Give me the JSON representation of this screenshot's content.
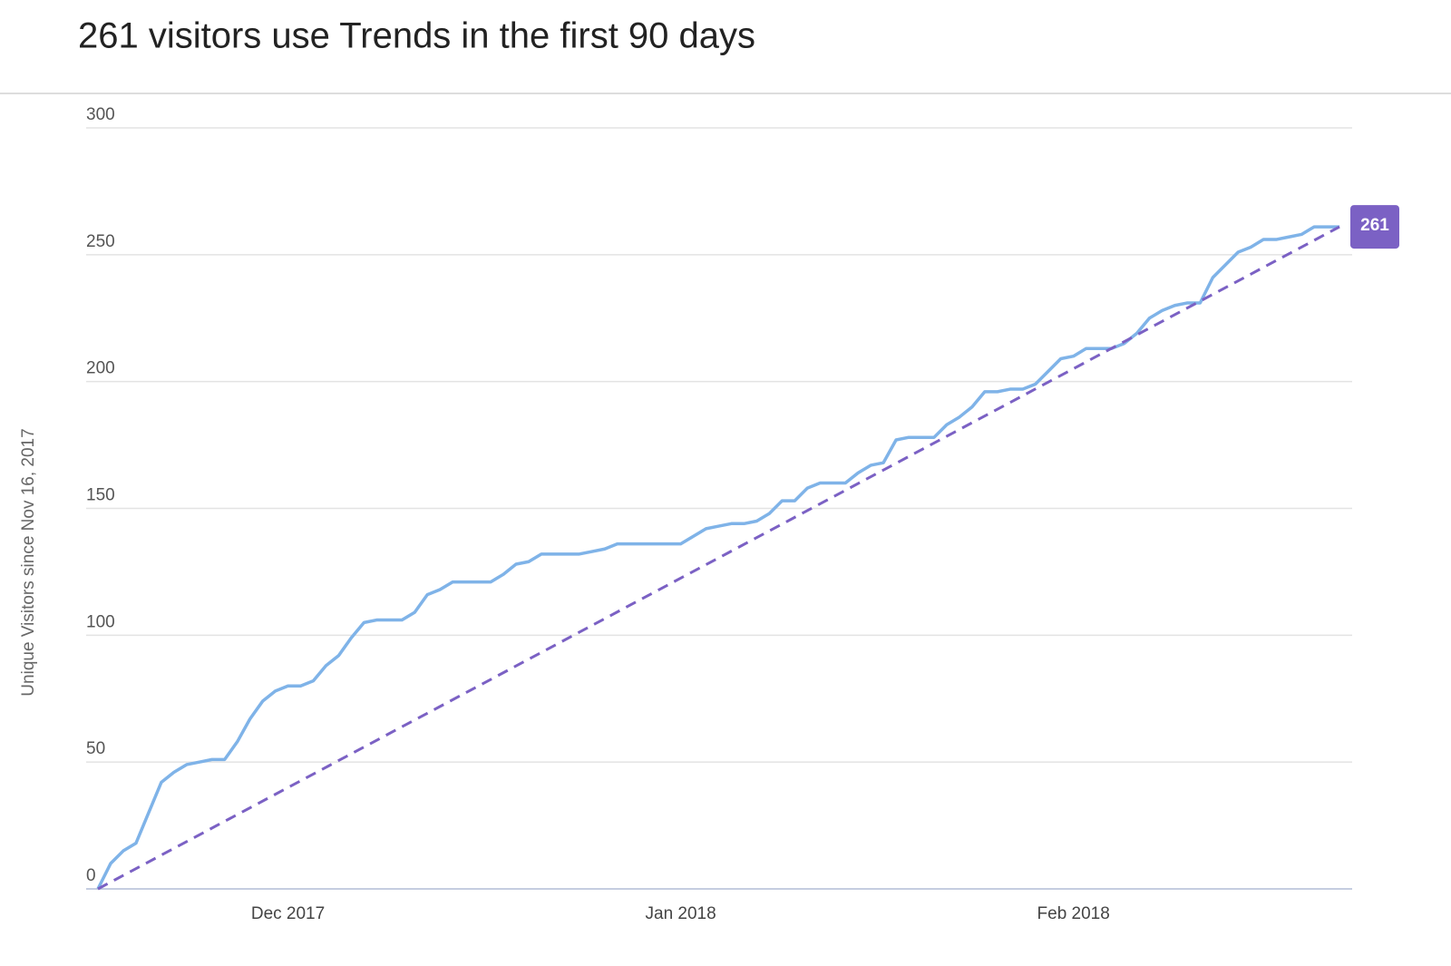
{
  "chart_data": {
    "type": "line",
    "title": "261 visitors use Trends in the first 90 days",
    "ylabel": "Unique Visitors since Nov 16, 2017",
    "xlim": [
      0,
      99
    ],
    "ylim": [
      0,
      300
    ],
    "xticks": [
      {
        "value": 15,
        "label": "Dec 2017"
      },
      {
        "value": 46,
        "label": "Jan 2018"
      },
      {
        "value": 77,
        "label": "Feb 2018"
      }
    ],
    "yticks": [
      0,
      50,
      100,
      150,
      200,
      250,
      300
    ],
    "grid": true,
    "label_last": true,
    "label_color": "#7b61c4",
    "series": [
      {
        "color": "#7fb3e8",
        "dashed": false,
        "x": [
          0,
          1,
          2,
          3,
          4,
          5,
          6,
          7,
          8,
          9,
          10,
          11,
          12,
          13,
          14,
          15,
          16,
          17,
          18,
          19,
          20,
          21,
          22,
          23,
          24,
          25,
          26,
          27,
          28,
          29,
          30,
          31,
          32,
          33,
          34,
          35,
          36,
          37,
          38,
          39,
          40,
          41,
          42,
          43,
          44,
          45,
          46,
          47,
          48,
          49,
          50,
          51,
          52,
          53,
          54,
          55,
          56,
          57,
          58,
          59,
          60,
          61,
          62,
          63,
          64,
          65,
          66,
          67,
          68,
          69,
          70,
          71,
          72,
          73,
          74,
          75,
          76,
          77,
          78,
          79,
          80,
          81,
          82,
          83,
          84,
          85,
          86,
          87,
          88,
          89,
          90,
          91,
          92,
          93,
          94,
          95,
          96,
          97,
          98
        ],
        "values": [
          0,
          10,
          15,
          18,
          30,
          42,
          46,
          49,
          50,
          51,
          51,
          58,
          67,
          74,
          78,
          80,
          80,
          82,
          88,
          92,
          99,
          105,
          106,
          106,
          106,
          109,
          116,
          118,
          121,
          121,
          121,
          121,
          124,
          128,
          129,
          132,
          132,
          132,
          132,
          133,
          134,
          136,
          136,
          136,
          136,
          136,
          136,
          139,
          142,
          143,
          144,
          144,
          145,
          148,
          153,
          153,
          158,
          160,
          160,
          160,
          164,
          167,
          168,
          177,
          178,
          178,
          178,
          183,
          186,
          190,
          196,
          196,
          197,
          197,
          199,
          204,
          209,
          210,
          213,
          213,
          213,
          215,
          219,
          225,
          228,
          230,
          231,
          231,
          241,
          246,
          251,
          253,
          256,
          256,
          257,
          258,
          261,
          261,
          261
        ]
      },
      {
        "color": "#7b61c4",
        "dashed": true,
        "x": [
          0,
          98
        ],
        "values": [
          0,
          261
        ]
      }
    ]
  }
}
